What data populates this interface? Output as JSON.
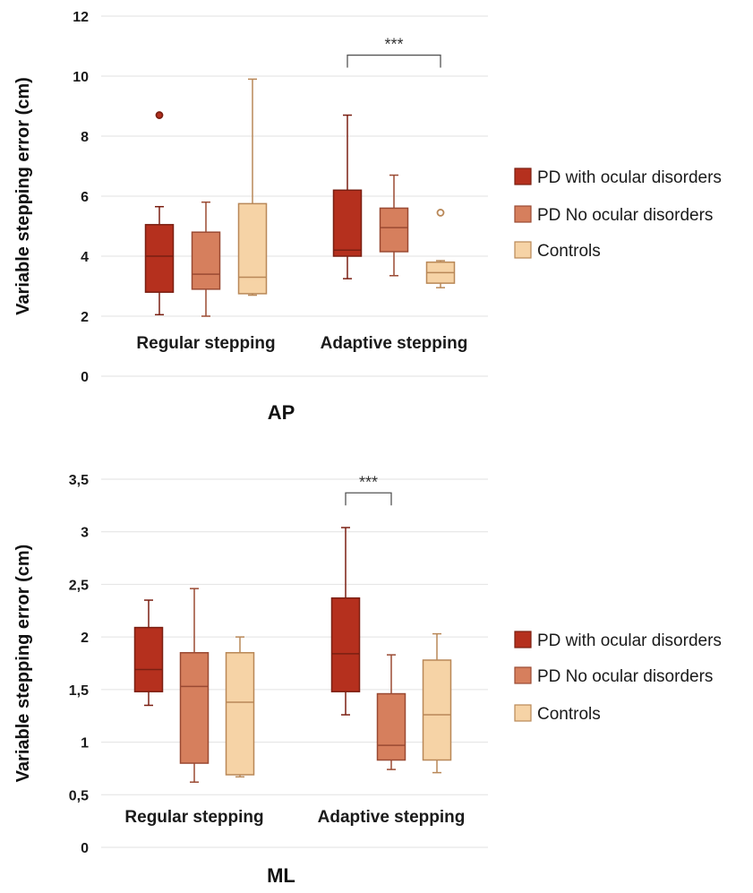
{
  "chart_data": [
    {
      "type": "box",
      "title": "AP",
      "xlabel": "",
      "ylabel": "Variable stepping error (cm)",
      "ylim": [
        0,
        12
      ],
      "yticks": [
        "0",
        "2",
        "4",
        "6",
        "8",
        "10",
        "12"
      ],
      "ytick_values": [
        0,
        2,
        4,
        6,
        8,
        10,
        12
      ],
      "grid": true,
      "legend_position": "right",
      "categories": [
        "Regular stepping",
        "Adaptive stepping"
      ],
      "series": [
        {
          "name": "PD with ocular disorders",
          "color": "#b5301e",
          "boxes": [
            {
              "whisker_low": 2.05,
              "q1": 2.8,
              "median": 4.0,
              "q3": 5.05,
              "whisker_high": 5.65,
              "outliers": [
                8.7
              ],
              "outlier_style": "filled"
            },
            {
              "whisker_low": 3.25,
              "q1": 4.0,
              "median": 4.2,
              "q3": 6.2,
              "whisker_high": 8.7,
              "outliers": [],
              "outlier_style": "filled"
            }
          ]
        },
        {
          "name": "PD No ocular disorders",
          "color": "#d67f5d",
          "boxes": [
            {
              "whisker_low": 2.0,
              "q1": 2.9,
              "median": 3.4,
              "q3": 4.8,
              "whisker_high": 5.8,
              "outliers": [],
              "outlier_style": "filled"
            },
            {
              "whisker_low": 3.35,
              "q1": 4.15,
              "median": 4.95,
              "q3": 5.6,
              "whisker_high": 6.7,
              "outliers": [],
              "outlier_style": "filled"
            }
          ]
        },
        {
          "name": "Controls",
          "color": "#f6d3a6",
          "boxes": [
            {
              "whisker_low": 2.7,
              "q1": 2.75,
              "median": 3.3,
              "q3": 5.75,
              "whisker_high": 9.9,
              "outliers": [],
              "outlier_style": "hollow"
            },
            {
              "whisker_low": 2.95,
              "q1": 3.1,
              "median": 3.45,
              "q3": 3.8,
              "whisker_high": 3.85,
              "outliers": [
                5.45
              ],
              "outlier_style": "hollow"
            }
          ]
        }
      ],
      "annotations": [
        {
          "text": "***",
          "category": "Adaptive stepping",
          "from_series": 0,
          "to_series": 2,
          "y": 10.7
        }
      ]
    },
    {
      "type": "box",
      "title": "ML",
      "xlabel": "",
      "ylabel": "Variable stepping error (cm)",
      "ylim": [
        0,
        3.5
      ],
      "yticks": [
        "0",
        "0,5",
        "1",
        "1,5",
        "2",
        "2,5",
        "3",
        "3,5"
      ],
      "ytick_values": [
        0,
        0.5,
        1,
        1.5,
        2,
        2.5,
        3,
        3.5
      ],
      "grid": true,
      "legend_position": "right",
      "categories": [
        "Regular stepping",
        "Adaptive stepping"
      ],
      "series": [
        {
          "name": "PD with ocular disorders",
          "color": "#b5301e",
          "boxes": [
            {
              "whisker_low": 1.35,
              "q1": 1.48,
              "median": 1.69,
              "q3": 2.09,
              "whisker_high": 2.35,
              "outliers": [],
              "outlier_style": "filled"
            },
            {
              "whisker_low": 1.26,
              "q1": 1.48,
              "median": 1.84,
              "q3": 2.37,
              "whisker_high": 3.04,
              "outliers": [],
              "outlier_style": "filled"
            }
          ]
        },
        {
          "name": "PD No ocular disorders",
          "color": "#d67f5d",
          "boxes": [
            {
              "whisker_low": 0.62,
              "q1": 0.8,
              "median": 1.53,
              "q3": 1.85,
              "whisker_high": 2.46,
              "outliers": [],
              "outlier_style": "filled"
            },
            {
              "whisker_low": 0.74,
              "q1": 0.83,
              "median": 0.97,
              "q3": 1.46,
              "whisker_high": 1.83,
              "outliers": [],
              "outlier_style": "filled"
            }
          ]
        },
        {
          "name": "Controls",
          "color": "#f6d3a6",
          "boxes": [
            {
              "whisker_low": 0.67,
              "q1": 0.69,
              "median": 1.38,
              "q3": 1.85,
              "whisker_high": 2.0,
              "outliers": [],
              "outlier_style": "hollow"
            },
            {
              "whisker_low": 0.71,
              "q1": 0.83,
              "median": 1.26,
              "q3": 1.78,
              "whisker_high": 2.03,
              "outliers": [],
              "outlier_style": "hollow"
            }
          ]
        }
      ],
      "annotations": [
        {
          "text": "***",
          "category": "Adaptive stepping",
          "from_series": 0,
          "to_series": 1,
          "y": 3.37
        }
      ]
    }
  ]
}
